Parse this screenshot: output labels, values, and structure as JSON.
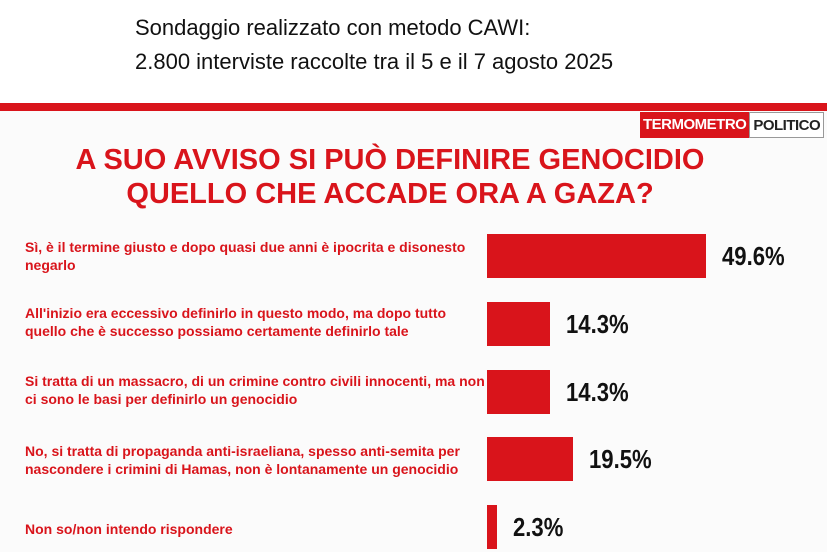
{
  "chart_data": {
    "type": "bar",
    "orientation": "horizontal",
    "subtitle": [
      "Sondaggio realizzato con metodo CAWI:",
      "2.800 interviste raccolte tra il 5 e il 7 agosto 2025"
    ],
    "logo": [
      "TERMOMETRO",
      "POLITICO"
    ],
    "title": "A SUO AVVISO SI PUÒ DEFINIRE GENOCIDIO QUELLO CHE ACCADE ORA A GAZA?",
    "categories": [
      "Sì, è il termine giusto e dopo quasi due anni è ipocrita e disonesto negarlo",
      "All'inizio era eccessivo definirlo in questo modo, ma dopo tutto quello che è successo possiamo certamente definirlo tale",
      "Si tratta di un massacro, di un crimine contro civili innocenti, ma non ci sono le basi per definirlo un genocidio",
      "No, si tratta di propaganda anti-israeliana, spesso anti-semita per nascondere i crimini di Hamas, non è lontanamente un genocidio",
      "Non so/non intendo rispondere"
    ],
    "values": [
      49.6,
      14.3,
      14.3,
      19.5,
      2.3
    ],
    "value_labels": [
      "49.6%",
      "14.3%",
      "14.3%",
      "19.5%",
      "2.3%"
    ],
    "color": "#d9141b"
  }
}
